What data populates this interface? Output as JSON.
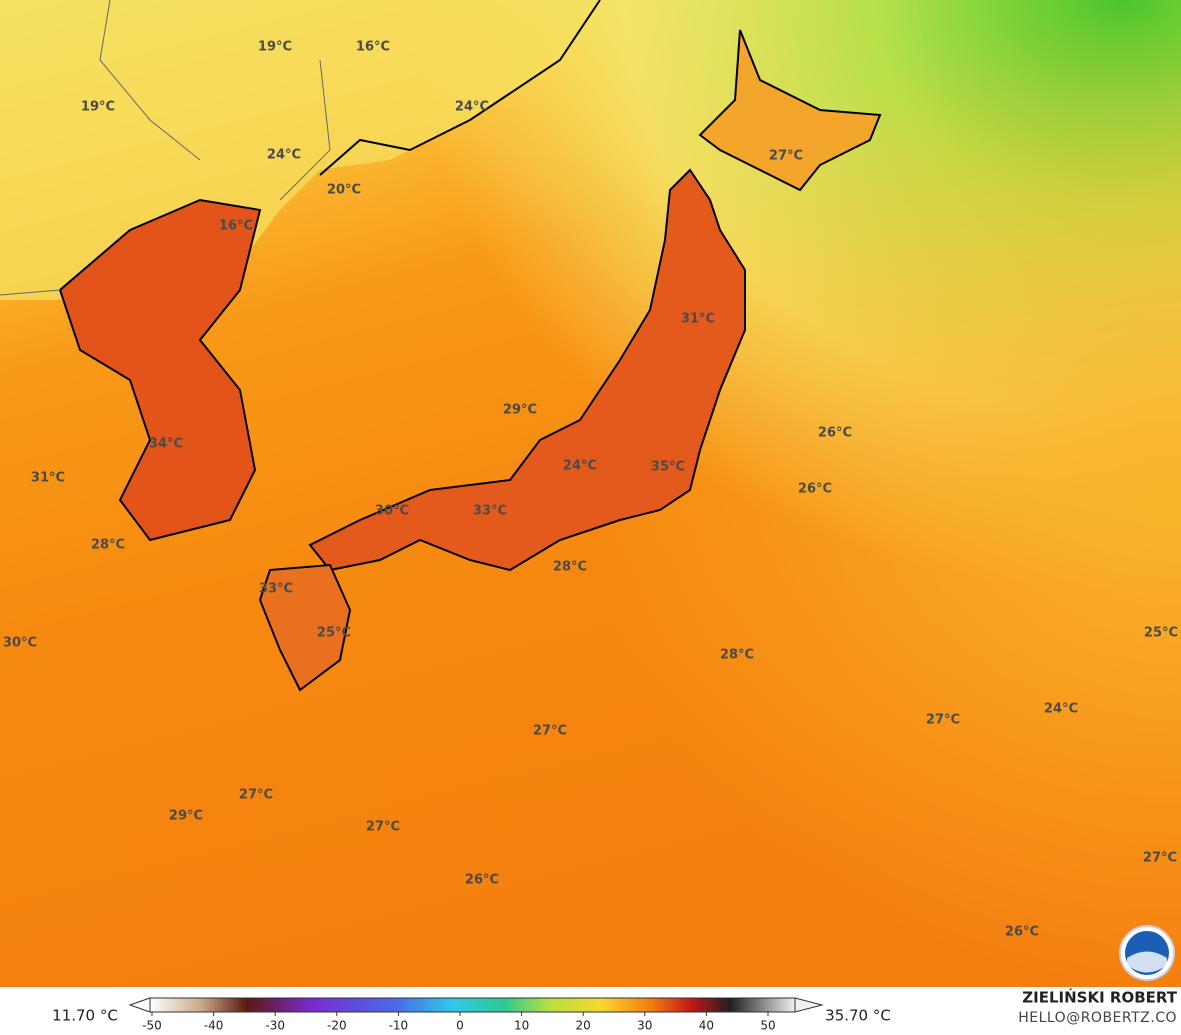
{
  "map": {
    "labels": [
      "19°C",
      "16°C",
      "19°C",
      "24°C",
      "24°C",
      "20°C",
      "27°C",
      "16°C",
      "31°C",
      "29°C",
      "26°C",
      "34°C",
      "24°C",
      "35°C",
      "31°C",
      "26°C",
      "30°C",
      "33°C",
      "28°C",
      "28°C",
      "33°C",
      "25°C",
      "30°C",
      "25°C",
      "28°C",
      "27°C",
      "24°C",
      "27°C",
      "27°C",
      "29°C",
      "27°C",
      "27°C",
      "26°C",
      "26°C"
    ]
  },
  "colorbar": {
    "min_label": "11.70 °C",
    "max_label": "35.70 °C",
    "ticks": [
      -50,
      -40,
      -30,
      -20,
      -10,
      0,
      10,
      20,
      30,
      40,
      50
    ]
  },
  "credit": {
    "name": "ZIELIŃSKI ROBERT",
    "email": "HELLO@ROBERTZ.CO"
  }
}
